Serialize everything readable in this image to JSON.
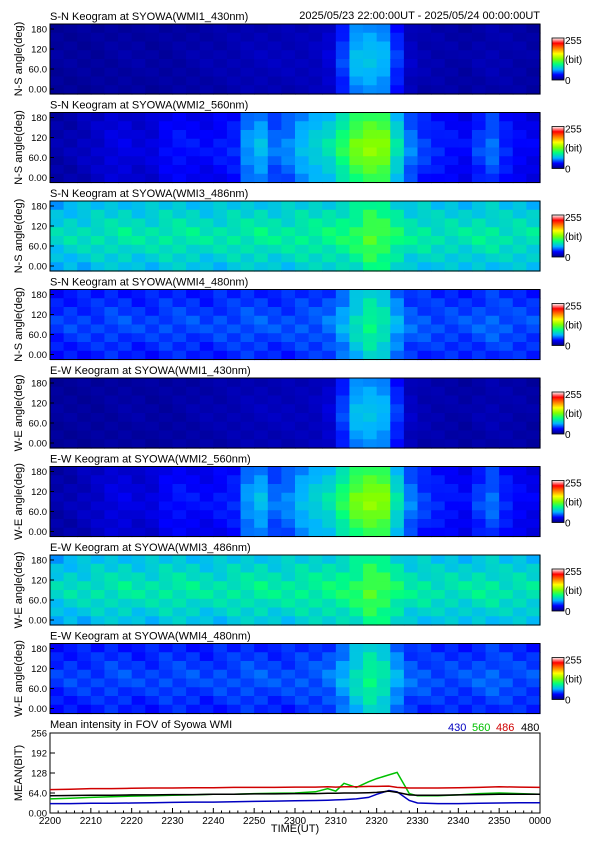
{
  "header": {
    "time_range": "2025/05/23 22:00:00UT - 2025/05/24 00:00:00UT"
  },
  "colorbar": {
    "max_label": "255",
    "unit_label": "(bit)",
    "min_label": "0"
  },
  "colormap": {
    "stops": [
      "#000080",
      "#0000ff",
      "#00b4ff",
      "#00ff80",
      "#80ff00",
      "#ffff00",
      "#ff8000",
      "#ff0000",
      "#ffffff"
    ]
  },
  "keograms": [
    {
      "title": "S-N Keogram at SYOWA(WMI1_430nm)",
      "ylabel": "N-S angle(deg)",
      "yticks": [
        "180",
        "120",
        "60.0",
        "0.00"
      ],
      "base": 0.17,
      "profile": [
        0.05,
        0.05,
        0.05,
        0.05,
        0.06,
        0.07,
        0.07,
        0.06,
        0.06,
        0.07,
        0.08,
        0.09,
        0.09,
        0.1,
        0.11,
        0.12,
        0.12,
        0.12,
        0.12,
        0.13,
        0.18,
        0.38,
        0.6,
        0.62,
        0.58,
        0.36,
        0.14,
        0.1,
        0.09,
        0.08,
        0.07,
        0.09,
        0.1,
        0.09,
        0.08,
        0.07
      ]
    },
    {
      "title": "S-N Keogram at SYOWA(WMI2_560nm)",
      "ylabel": "N-S angle(deg)",
      "yticks": [
        "180",
        "120",
        "60.0",
        "0.00"
      ],
      "base": 0.25,
      "profile": [
        0.05,
        0.06,
        0.08,
        0.1,
        0.13,
        0.14,
        0.12,
        0.13,
        0.18,
        0.2,
        0.19,
        0.18,
        0.2,
        0.22,
        0.35,
        0.4,
        0.3,
        0.33,
        0.4,
        0.45,
        0.5,
        0.62,
        0.75,
        0.8,
        0.78,
        0.5,
        0.32,
        0.25,
        0.22,
        0.2,
        0.18,
        0.25,
        0.3,
        0.22,
        0.18,
        0.16
      ]
    },
    {
      "title": "S-N Keogram at SYOWA(WMI3_486nm)",
      "ylabel": "N-S angle(deg)",
      "yticks": [
        "180",
        "120",
        "60.0",
        "0.00"
      ],
      "base": 0.5,
      "profile": [
        0.22,
        0.23,
        0.23,
        0.24,
        0.24,
        0.25,
        0.24,
        0.24,
        0.25,
        0.25,
        0.25,
        0.24,
        0.24,
        0.25,
        0.25,
        0.26,
        0.25,
        0.25,
        0.26,
        0.26,
        0.27,
        0.28,
        0.3,
        0.34,
        0.32,
        0.28,
        0.25,
        0.25,
        0.24,
        0.24,
        0.24,
        0.25,
        0.25,
        0.24,
        0.24,
        0.24
      ]
    },
    {
      "title": "S-N Keogram at SYOWA(WMI4_480nm)",
      "ylabel": "N-S angle(deg)",
      "yticks": [
        "180",
        "120",
        "60.0",
        "0.00"
      ],
      "base": 0.35,
      "profile": [
        0.16,
        0.17,
        0.17,
        0.17,
        0.18,
        0.18,
        0.17,
        0.17,
        0.18,
        0.18,
        0.18,
        0.17,
        0.18,
        0.18,
        0.19,
        0.19,
        0.18,
        0.18,
        0.19,
        0.19,
        0.21,
        0.26,
        0.34,
        0.4,
        0.36,
        0.26,
        0.2,
        0.19,
        0.18,
        0.18,
        0.18,
        0.19,
        0.2,
        0.19,
        0.18,
        0.18
      ]
    },
    {
      "title": "E-W Keogram at SYOWA(WMI1_430nm)",
      "ylabel": "W-E angle(deg)",
      "yticks": [
        "180",
        "120",
        "60.0",
        "0.00"
      ],
      "base": 0.17,
      "profile": [
        0.05,
        0.05,
        0.05,
        0.05,
        0.06,
        0.07,
        0.07,
        0.06,
        0.06,
        0.07,
        0.08,
        0.09,
        0.09,
        0.1,
        0.11,
        0.12,
        0.12,
        0.12,
        0.12,
        0.13,
        0.18,
        0.38,
        0.6,
        0.62,
        0.58,
        0.36,
        0.14,
        0.1,
        0.09,
        0.08,
        0.07,
        0.09,
        0.1,
        0.09,
        0.08,
        0.07
      ]
    },
    {
      "title": "E-W Keogram at SYOWA(WMI2_560nm)",
      "ylabel": "W-E angle(deg)",
      "yticks": [
        "180",
        "120",
        "60.0",
        "0.00"
      ],
      "base": 0.25,
      "profile": [
        0.05,
        0.06,
        0.08,
        0.1,
        0.13,
        0.14,
        0.12,
        0.13,
        0.18,
        0.2,
        0.19,
        0.18,
        0.2,
        0.22,
        0.35,
        0.4,
        0.3,
        0.33,
        0.4,
        0.45,
        0.5,
        0.62,
        0.75,
        0.8,
        0.78,
        0.5,
        0.32,
        0.25,
        0.22,
        0.2,
        0.18,
        0.25,
        0.3,
        0.22,
        0.18,
        0.16
      ]
    },
    {
      "title": "E-W Keogram at SYOWA(WMI3_486nm)",
      "ylabel": "W-E angle(deg)",
      "yticks": [
        "180",
        "120",
        "60.0",
        "0.00"
      ],
      "base": 0.5,
      "profile": [
        0.22,
        0.23,
        0.23,
        0.24,
        0.24,
        0.25,
        0.24,
        0.24,
        0.25,
        0.25,
        0.25,
        0.24,
        0.24,
        0.25,
        0.25,
        0.26,
        0.25,
        0.25,
        0.26,
        0.26,
        0.27,
        0.28,
        0.3,
        0.34,
        0.32,
        0.28,
        0.25,
        0.25,
        0.24,
        0.24,
        0.24,
        0.25,
        0.25,
        0.24,
        0.24,
        0.24
      ]
    },
    {
      "title": "E-W Keogram at SYOWA(WMI4_480nm)",
      "ylabel": "W-E angle(deg)",
      "yticks": [
        "180",
        "120",
        "60.0",
        "0.00"
      ],
      "base": 0.35,
      "profile": [
        0.16,
        0.17,
        0.17,
        0.17,
        0.18,
        0.18,
        0.17,
        0.17,
        0.18,
        0.18,
        0.18,
        0.17,
        0.18,
        0.18,
        0.19,
        0.19,
        0.18,
        0.18,
        0.19,
        0.19,
        0.21,
        0.26,
        0.34,
        0.4,
        0.36,
        0.26,
        0.2,
        0.19,
        0.18,
        0.18,
        0.18,
        0.19,
        0.2,
        0.19,
        0.18,
        0.18
      ]
    }
  ],
  "chart_data": {
    "type": "line",
    "title": "Mean intensity in FOV of Syowa WMI",
    "xlabel": "TIME(UT)",
    "ylabel": "MEAN(BIT)",
    "xlim": [
      0,
      120
    ],
    "ylim": [
      0,
      256
    ],
    "x_tick_labels": [
      "2200",
      "2210",
      "2220",
      "2230",
      "2240",
      "2250",
      "2300",
      "2310",
      "2320",
      "2330",
      "2340",
      "2350",
      "0000"
    ],
    "y_tick_labels": [
      "0.00",
      "64.0",
      "128",
      "192",
      "256"
    ],
    "y_tick_values": [
      0,
      64,
      128,
      192,
      256
    ],
    "x": [
      0,
      5,
      10,
      15,
      20,
      25,
      30,
      35,
      40,
      45,
      50,
      55,
      60,
      65,
      68,
      70,
      72,
      75,
      78,
      80,
      83,
      85,
      88,
      90,
      95,
      100,
      105,
      110,
      115,
      120
    ],
    "series": [
      {
        "name": "430",
        "color": "#0000c0",
        "values": [
          30,
          30,
          31,
          31,
          32,
          33,
          34,
          35,
          35,
          36,
          37,
          38,
          39,
          40,
          41,
          42,
          43,
          45,
          50,
          60,
          72,
          68,
          40,
          32,
          30,
          30,
          31,
          32,
          33,
          33
        ]
      },
      {
        "name": "560",
        "color": "#00c000",
        "values": [
          45,
          47,
          50,
          52,
          54,
          55,
          57,
          58,
          60,
          60,
          62,
          63,
          64,
          68,
          78,
          70,
          95,
          82,
          100,
          110,
          122,
          130,
          62,
          55,
          55,
          58,
          62,
          64,
          62,
          60
        ]
      },
      {
        "name": "486",
        "color": "#d00000",
        "values": [
          75,
          76,
          78,
          78,
          79,
          80,
          80,
          81,
          81,
          82,
          82,
          82,
          83,
          83,
          84,
          83,
          84,
          84,
          85,
          85,
          86,
          82,
          80,
          80,
          80,
          81,
          82,
          84,
          83,
          82
        ]
      },
      {
        "name": "480",
        "color": "#000000",
        "values": [
          55,
          56,
          57,
          57,
          58,
          58,
          59,
          59,
          60,
          60,
          61,
          61,
          62,
          62,
          63,
          63,
          64,
          64,
          65,
          66,
          70,
          66,
          58,
          57,
          57,
          58,
          59,
          60,
          60,
          60
        ]
      }
    ]
  }
}
